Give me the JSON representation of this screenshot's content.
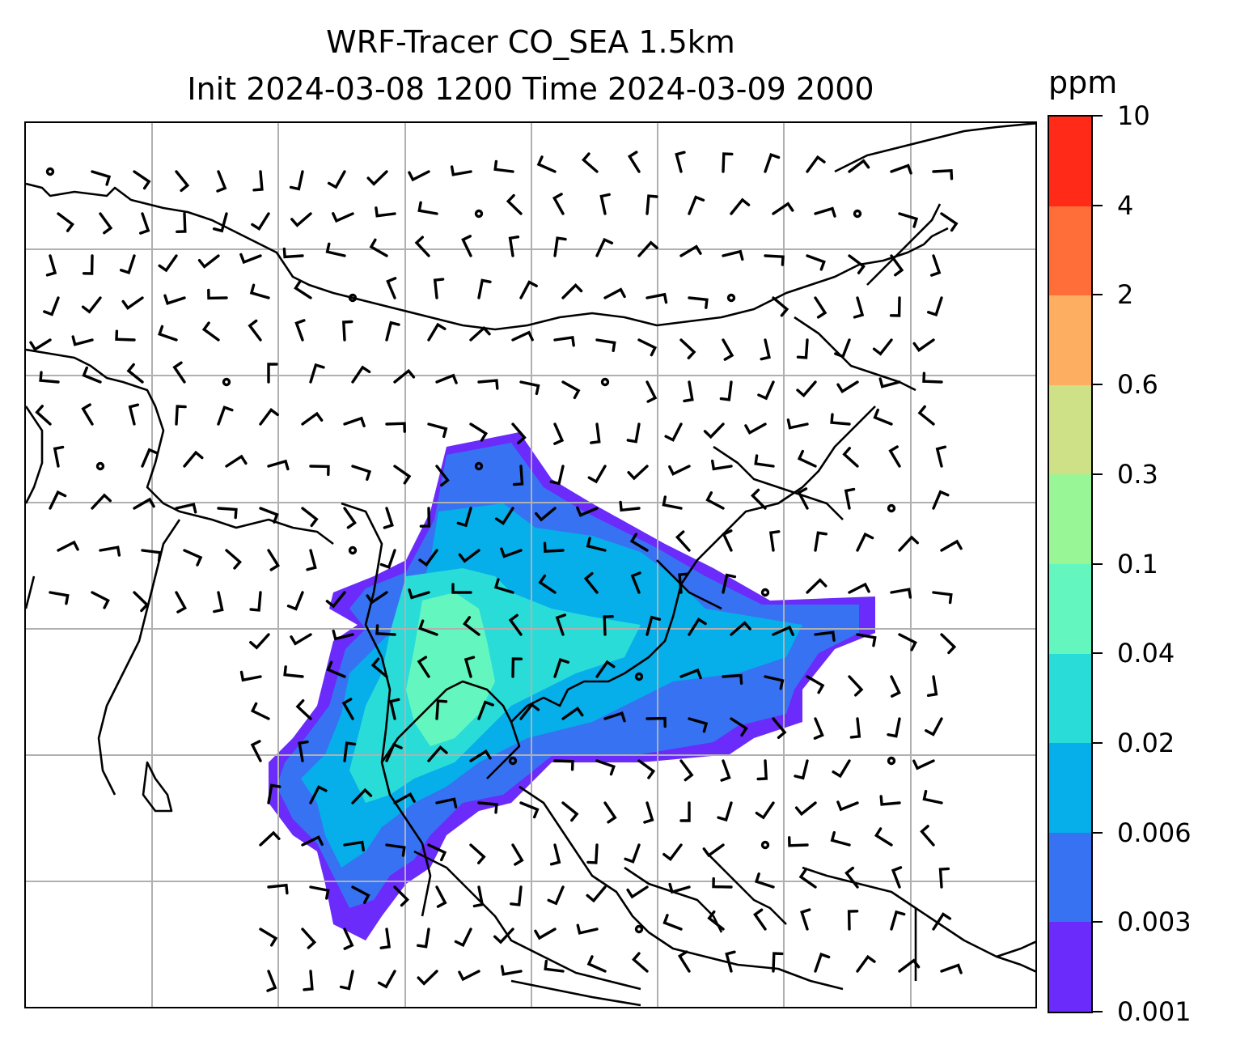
{
  "title": {
    "line1": "WRF-Tracer CO_SEA 1.5km",
    "line2": "Init 2024-03-08 1200 Time 2024-03-09 2000"
  },
  "colorbar": {
    "unit": "ppm",
    "levels": [
      "0.001",
      "0.003",
      "0.006",
      "0.02",
      "0.04",
      "0.1",
      "0.3",
      "0.6",
      "2",
      "4",
      "10"
    ],
    "colors": [
      "#6a2bfb",
      "#3772f2",
      "#06aeea",
      "#2adcd8",
      "#63f7bf",
      "#99f696",
      "#cfe186",
      "#fdae61",
      "#ff6e38",
      "#ff2a17"
    ]
  },
  "map": {
    "gridlines": true,
    "grid_color": "#b0b0b0",
    "coastline_color": "#000000",
    "layers": [
      "coastlines",
      "country-borders",
      "co-tracer-concentration",
      "wind-barbs"
    ]
  }
}
